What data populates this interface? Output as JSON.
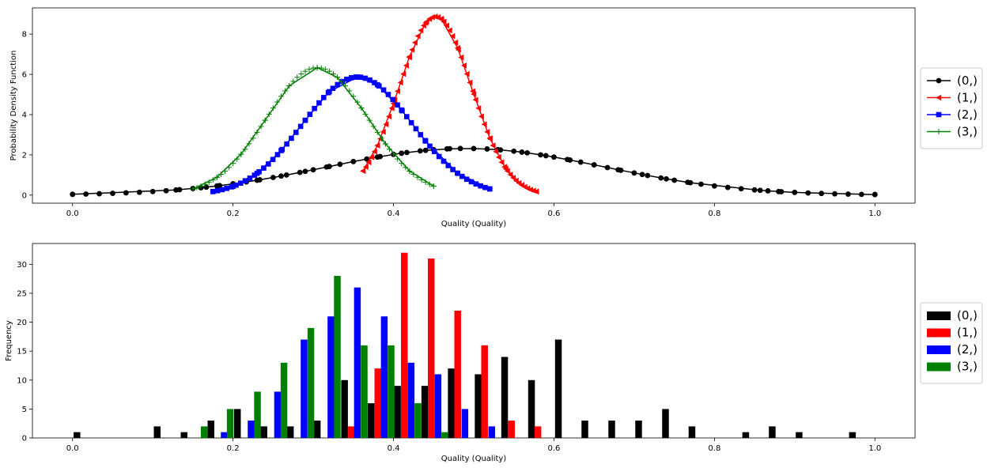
{
  "chart_data": [
    {
      "type": "line",
      "xlabel": "Quality (Quality)",
      "ylabel": "Probability Density Function",
      "xlim": [
        -0.05,
        1.05
      ],
      "ylim": [
        -0.4,
        9.3
      ],
      "xticks": [
        0.0,
        0.2,
        0.4,
        0.6,
        0.8,
        1.0
      ],
      "xtick_labels": [
        "0.0",
        "0.2",
        "0.4",
        "0.6",
        "0.8",
        "1.0"
      ],
      "yticks": [
        0,
        2,
        4,
        6,
        8
      ],
      "ytick_labels": [
        "0",
        "2",
        "4",
        "6",
        "8"
      ],
      "grid": false,
      "legend_position": "right, outside",
      "series": [
        {
          "name": "(0,)",
          "color": "#000000",
          "marker": "circle",
          "mu": 0.49,
          "sigma": 0.172,
          "x": [
            0.0,
            0.129,
            0.16,
            0.18,
            0.2,
            0.23,
            0.26,
            0.29,
            0.32,
            0.35,
            0.38,
            0.41,
            0.44,
            0.47,
            0.5,
            0.53,
            0.56,
            0.59,
            0.62,
            0.65,
            0.68,
            0.71,
            0.74,
            0.77,
            0.857,
            0.88,
            0.9,
            1.0
          ]
        },
        {
          "name": "(1,)",
          "color": "#ff0000",
          "marker": "triangle-left",
          "mu": 0.452,
          "sigma": 0.045,
          "x": [
            0.362,
            0.38,
            0.4,
            0.42,
            0.44,
            0.452,
            0.46,
            0.48,
            0.5,
            0.52,
            0.54,
            0.56,
            0.578
          ]
        },
        {
          "name": "(2,)",
          "color": "#0000ff",
          "marker": "square",
          "mu": 0.355,
          "sigma": 0.068,
          "x": [
            0.175,
            0.2,
            0.23,
            0.26,
            0.29,
            0.32,
            0.355,
            0.38,
            0.41,
            0.44,
            0.48,
            0.52
          ]
        },
        {
          "name": "(3,)",
          "color": "#008000",
          "marker": "plus",
          "mu": 0.305,
          "sigma": 0.063,
          "x": [
            0.15,
            0.18,
            0.21,
            0.24,
            0.27,
            0.305,
            0.33,
            0.36,
            0.39,
            0.42,
            0.45
          ]
        }
      ]
    },
    {
      "type": "bar",
      "xlabel": "Quality (Quality)",
      "ylabel": "Frequency",
      "xlim": [
        -0.05,
        1.05
      ],
      "ylim": [
        0,
        33.6
      ],
      "xticks": [
        0.0,
        0.2,
        0.4,
        0.6,
        0.8,
        1.0
      ],
      "xtick_labels": [
        "0.0",
        "0.2",
        "0.4",
        "0.6",
        "0.8",
        "1.0"
      ],
      "yticks": [
        0,
        5,
        10,
        15,
        20,
        25,
        30
      ],
      "ytick_labels": [
        "0",
        "5",
        "10",
        "15",
        "20",
        "25",
        "30"
      ],
      "grid": false,
      "legend_position": "right, outside",
      "bin_width": 0.0334,
      "series": [
        {
          "name": "(0,)",
          "color": "#000000",
          "bars": [
            [
              0.0055,
              1
            ],
            [
              0.1055,
              2
            ],
            [
              0.139,
              1
            ],
            [
              0.1725,
              3
            ],
            [
              0.2055,
              5
            ],
            [
              0.2385,
              2
            ],
            [
              0.2715,
              2
            ],
            [
              0.305,
              3
            ],
            [
              0.339,
              10
            ],
            [
              0.372,
              6
            ],
            [
              0.405,
              9
            ],
            [
              0.439,
              9
            ],
            [
              0.472,
              12
            ],
            [
              0.5055,
              11
            ],
            [
              0.5385,
              14
            ],
            [
              0.572,
              10
            ],
            [
              0.6055,
              17
            ],
            [
              0.6385,
              3
            ],
            [
              0.672,
              3
            ],
            [
              0.7055,
              3
            ],
            [
              0.739,
              5
            ],
            [
              0.772,
              2
            ],
            [
              0.839,
              1
            ],
            [
              0.872,
              2
            ],
            [
              0.9055,
              1
            ],
            [
              0.972,
              1
            ]
          ]
        },
        {
          "name": "(1,)",
          "color": "#ff0000",
          "bars": [
            [
              0.3475,
              2
            ],
            [
              0.3805,
              12
            ],
            [
              0.4135,
              32
            ],
            [
              0.447,
              31
            ],
            [
              0.48,
              22
            ],
            [
              0.5135,
              16
            ],
            [
              0.547,
              3
            ],
            [
              0.58,
              2
            ]
          ]
        },
        {
          "name": "(2,)",
          "color": "#0000ff",
          "bars": [
            [
              0.189,
              1
            ],
            [
              0.2225,
              3
            ],
            [
              0.2555,
              8
            ],
            [
              0.2885,
              17
            ],
            [
              0.322,
              21
            ],
            [
              0.355,
              26
            ],
            [
              0.3885,
              21
            ],
            [
              0.422,
              13
            ],
            [
              0.4555,
              11
            ],
            [
              0.489,
              5
            ],
            [
              0.5225,
              2
            ]
          ]
        },
        {
          "name": "(3,)",
          "color": "#008000",
          "bars": [
            [
              0.164,
              2
            ],
            [
              0.1965,
              5
            ],
            [
              0.2305,
              8
            ],
            [
              0.2635,
              13
            ],
            [
              0.297,
              19
            ],
            [
              0.33,
              28
            ],
            [
              0.3635,
              16
            ],
            [
              0.397,
              16
            ],
            [
              0.4305,
              6
            ],
            [
              0.464,
              1
            ]
          ]
        }
      ]
    }
  ]
}
